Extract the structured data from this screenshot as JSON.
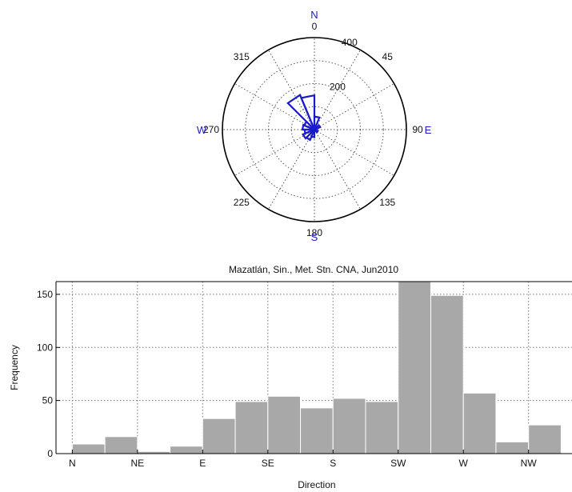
{
  "chart_data": [
    {
      "type": "rose",
      "compass_labels": {
        "n": "N",
        "e": "E",
        "s": "S",
        "w": "W"
      },
      "angle_labels": [
        "0",
        "45",
        "90",
        "135",
        "180",
        "225",
        "270",
        "315"
      ],
      "radial_labels": [
        "200",
        "400"
      ],
      "rlim": [
        0,
        400
      ],
      "grid": true,
      "series_color": "#1a1acc",
      "sectors": [
        {
          "from_deg": 0,
          "to_deg": 22.5,
          "value": 9
        },
        {
          "from_deg": 22.5,
          "to_deg": 45,
          "value": 16
        },
        {
          "from_deg": 45,
          "to_deg": 67.5,
          "value": 2
        },
        {
          "from_deg": 67.5,
          "to_deg": 90,
          "value": 7
        },
        {
          "from_deg": 90,
          "to_deg": 112.5,
          "value": 33
        },
        {
          "from_deg": 112.5,
          "to_deg": 135,
          "value": 49
        },
        {
          "from_deg": 135,
          "to_deg": 157.5,
          "value": 54
        },
        {
          "from_deg": 157.5,
          "to_deg": 180,
          "value": 43
        },
        {
          "from_deg": 180,
          "to_deg": 202.5,
          "value": 52
        },
        {
          "from_deg": 202.5,
          "to_deg": 225,
          "value": 49
        },
        {
          "from_deg": 225,
          "to_deg": 247.5,
          "value": 163
        },
        {
          "from_deg": 247.5,
          "to_deg": 270,
          "value": 149
        },
        {
          "from_deg": 270,
          "to_deg": 292.5,
          "value": 57
        },
        {
          "from_deg": 292.5,
          "to_deg": 315,
          "value": 11
        },
        {
          "from_deg": 315,
          "to_deg": 337.5,
          "value": 27
        },
        {
          "from_deg": 337.5,
          "to_deg": 360,
          "value": 0
        }
      ]
    },
    {
      "type": "bar",
      "title": "Mazatlán, Sin., Met. Stn. CNA, Jun2010",
      "xlabel": "Direction",
      "ylabel": "Frequency",
      "xtick_labels": [
        "N",
        "NE",
        "E",
        "SE",
        "S",
        "SW",
        "W",
        "NW"
      ],
      "xtick_positions_deg": [
        0,
        45,
        90,
        135,
        180,
        225,
        270,
        315
      ],
      "xlim": [
        -11.25,
        345
      ],
      "ylim": [
        0,
        162
      ],
      "yticks": [
        0,
        50,
        100,
        150
      ],
      "grid": true,
      "bar_color": "#a8a8a8",
      "bin_width_deg": 22.5,
      "bin_starts_deg": [
        0,
        22.5,
        45,
        67.5,
        90,
        112.5,
        135,
        157.5,
        180,
        202.5,
        225,
        247.5,
        270,
        292.5,
        315
      ],
      "values": [
        9,
        16,
        2,
        7,
        33,
        49,
        54,
        43,
        52,
        49,
        163,
        149,
        57,
        11,
        27
      ]
    }
  ]
}
